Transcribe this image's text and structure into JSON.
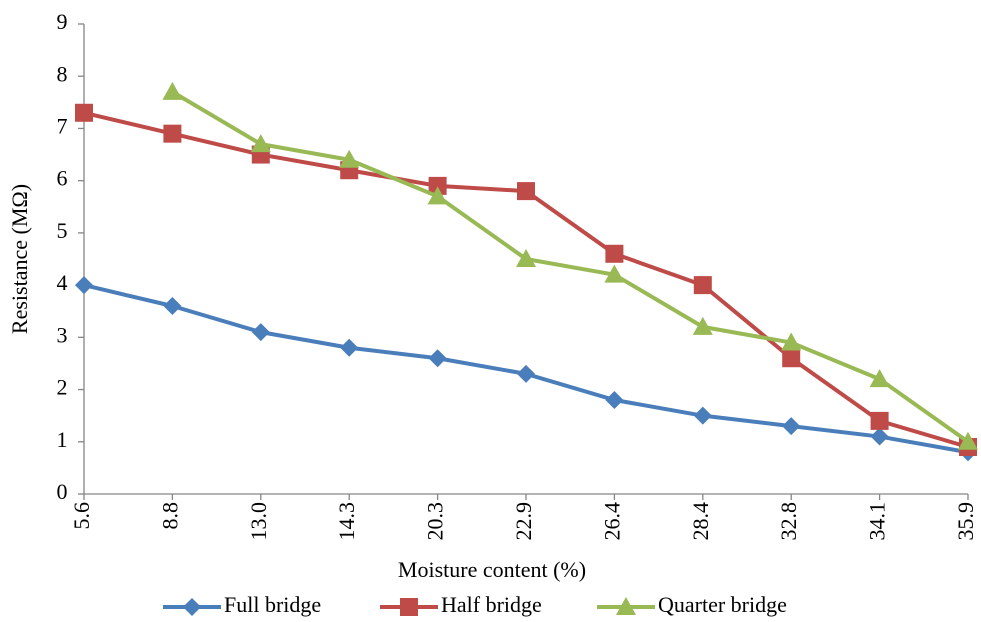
{
  "chart_data": {
    "type": "line",
    "xlabel": "Moisture content (%)",
    "ylabel": "Resistance (MΩ)",
    "categories": [
      "5.6",
      "8.8",
      "13.0",
      "14.3",
      "20.3",
      "22.9",
      "26.4",
      "28.4",
      "32.8",
      "34.1",
      "35.9"
    ],
    "series": [
      {
        "name": "Full bridge",
        "color": "#4a7ebb",
        "marker": "diamond",
        "values": [
          4.0,
          3.6,
          3.1,
          2.8,
          2.6,
          2.3,
          1.8,
          1.5,
          1.3,
          1.1,
          0.8
        ]
      },
      {
        "name": "Half bridge",
        "color": "#be4b48",
        "marker": "square",
        "values": [
          7.3,
          6.9,
          6.5,
          6.2,
          5.9,
          5.8,
          4.6,
          4.0,
          2.6,
          1.4,
          0.9
        ]
      },
      {
        "name": "Quarter bridge",
        "color": "#98b954",
        "marker": "triangle",
        "values": [
          null,
          7.7,
          6.7,
          6.4,
          5.7,
          4.5,
          4.2,
          3.2,
          2.9,
          2.2,
          1.0
        ]
      }
    ],
    "ylim": [
      0,
      9
    ],
    "yticks": [
      0,
      1,
      2,
      3,
      4,
      5,
      6,
      7,
      8,
      9
    ],
    "grid": false,
    "legend": "bottom"
  }
}
